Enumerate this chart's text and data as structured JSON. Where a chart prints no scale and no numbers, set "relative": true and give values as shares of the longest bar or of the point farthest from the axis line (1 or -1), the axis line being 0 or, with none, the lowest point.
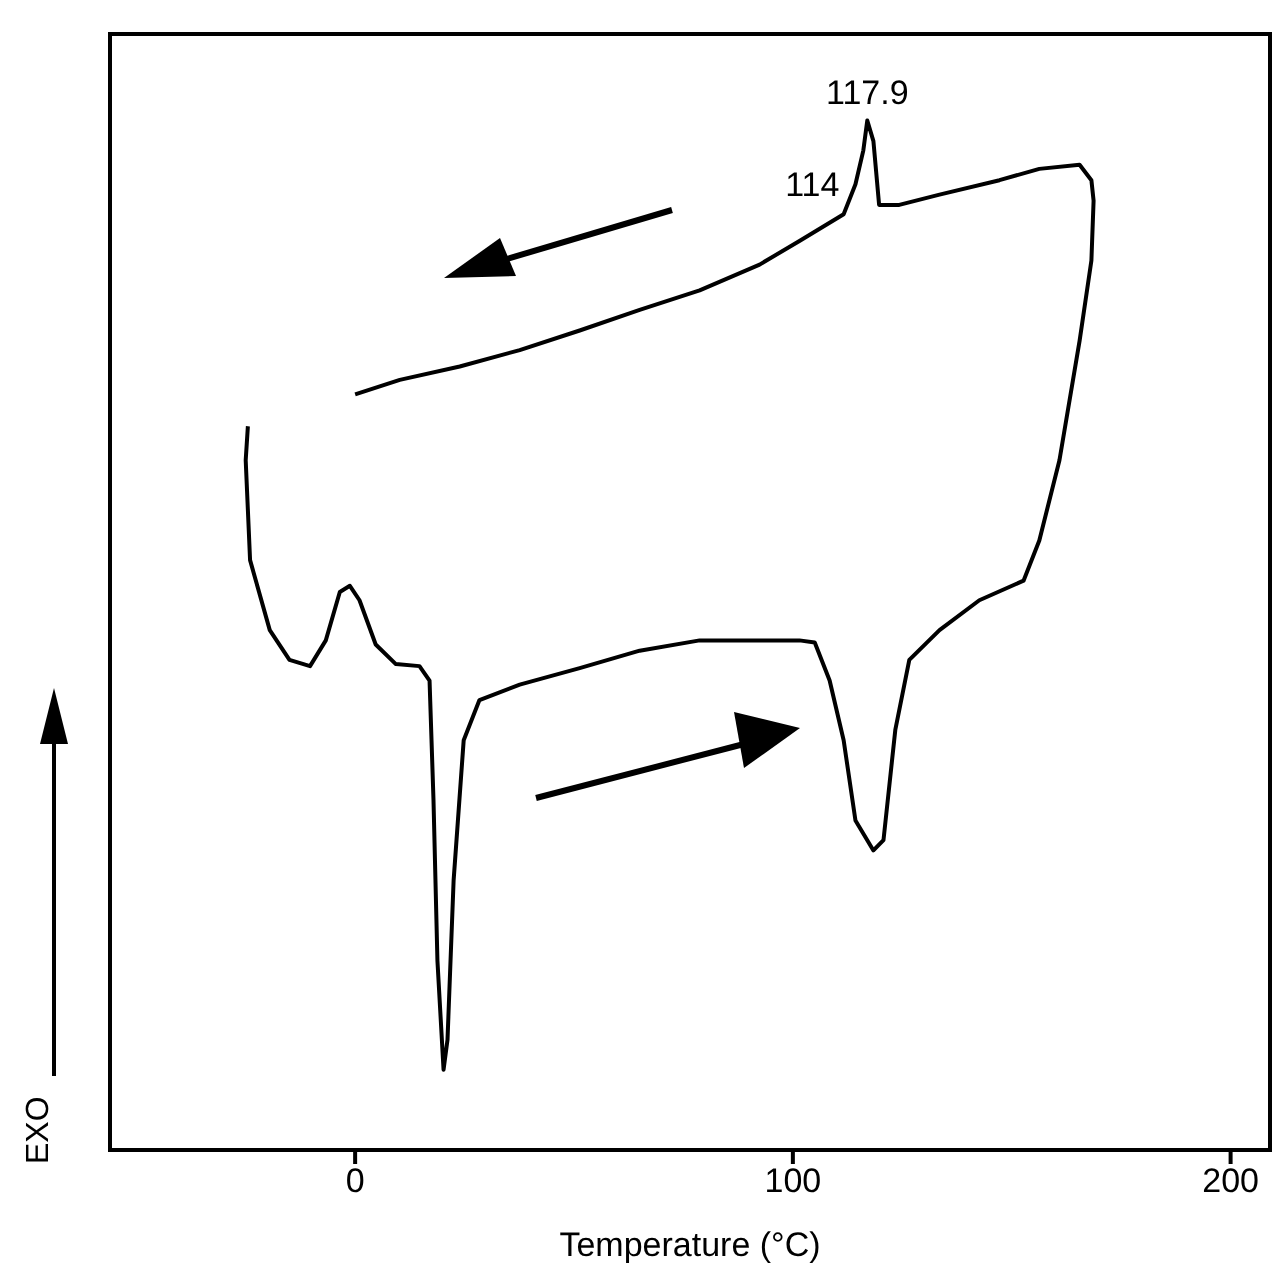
{
  "chart_data": {
    "type": "line",
    "relative": true,
    "xlabel": "Temperature (°C)",
    "ylabel": "EXO",
    "xlim": [
      -56,
      209
    ],
    "xticks": [
      0,
      100,
      200
    ],
    "marker": "none",
    "line_style": "solid",
    "annotations": [
      {
        "text": "117.9",
        "x": 117,
        "y": 1
      },
      {
        "text": "114",
        "x": 114.3,
        "y": 0.938
      }
    ],
    "series": [
      {
        "color": "#000000",
        "x": [
          -24.5,
          -25,
          -24,
          -19.5,
          -15,
          -10.3,
          -6.7,
          -3.5,
          -1.2,
          1,
          4.7,
          9.3,
          14.7,
          17,
          17.9,
          18.8,
          20.2,
          21.1,
          22.5,
          24.8,
          28.4,
          37.6,
          51.3,
          65,
          78.7,
          92.4,
          101.5,
          105,
          108.4,
          111.6,
          114.3,
          118.4,
          120.7,
          123.4,
          126.6,
          133.5,
          142.6,
          152.7,
          156.3,
          160.9,
          165.5,
          168.2,
          168.7,
          168.2,
          165.5,
          156.3,
          147.2,
          133.5,
          124.3,
          119.7,
          118.4,
          117,
          116.1,
          114.3,
          111.6,
          101.5,
          92.4,
          78.7,
          65,
          51.3,
          37.6,
          23.9,
          10.2,
          0
        ],
        "values": [
          0.703,
          0.67,
          0.573,
          0.505,
          0.476,
          0.47,
          0.495,
          0.542,
          0.548,
          0.534,
          0.491,
          0.472,
          0.47,
          0.456,
          0.34,
          0.184,
          0.078,
          0.107,
          0.262,
          0.398,
          0.437,
          0.452,
          0.468,
          0.485,
          0.495,
          0.495,
          0.495,
          0.493,
          0.456,
          0.398,
          0.32,
          0.291,
          0.301,
          0.408,
          0.476,
          0.505,
          0.534,
          0.553,
          0.592,
          0.67,
          0.786,
          0.864,
          0.922,
          0.942,
          0.957,
          0.953,
          0.942,
          0.928,
          0.918,
          0.918,
          0.98,
          1,
          0.971,
          0.938,
          0.909,
          0.883,
          0.86,
          0.835,
          0.816,
          0.796,
          0.777,
          0.761,
          0.748,
          0.734
        ]
      }
    ]
  }
}
